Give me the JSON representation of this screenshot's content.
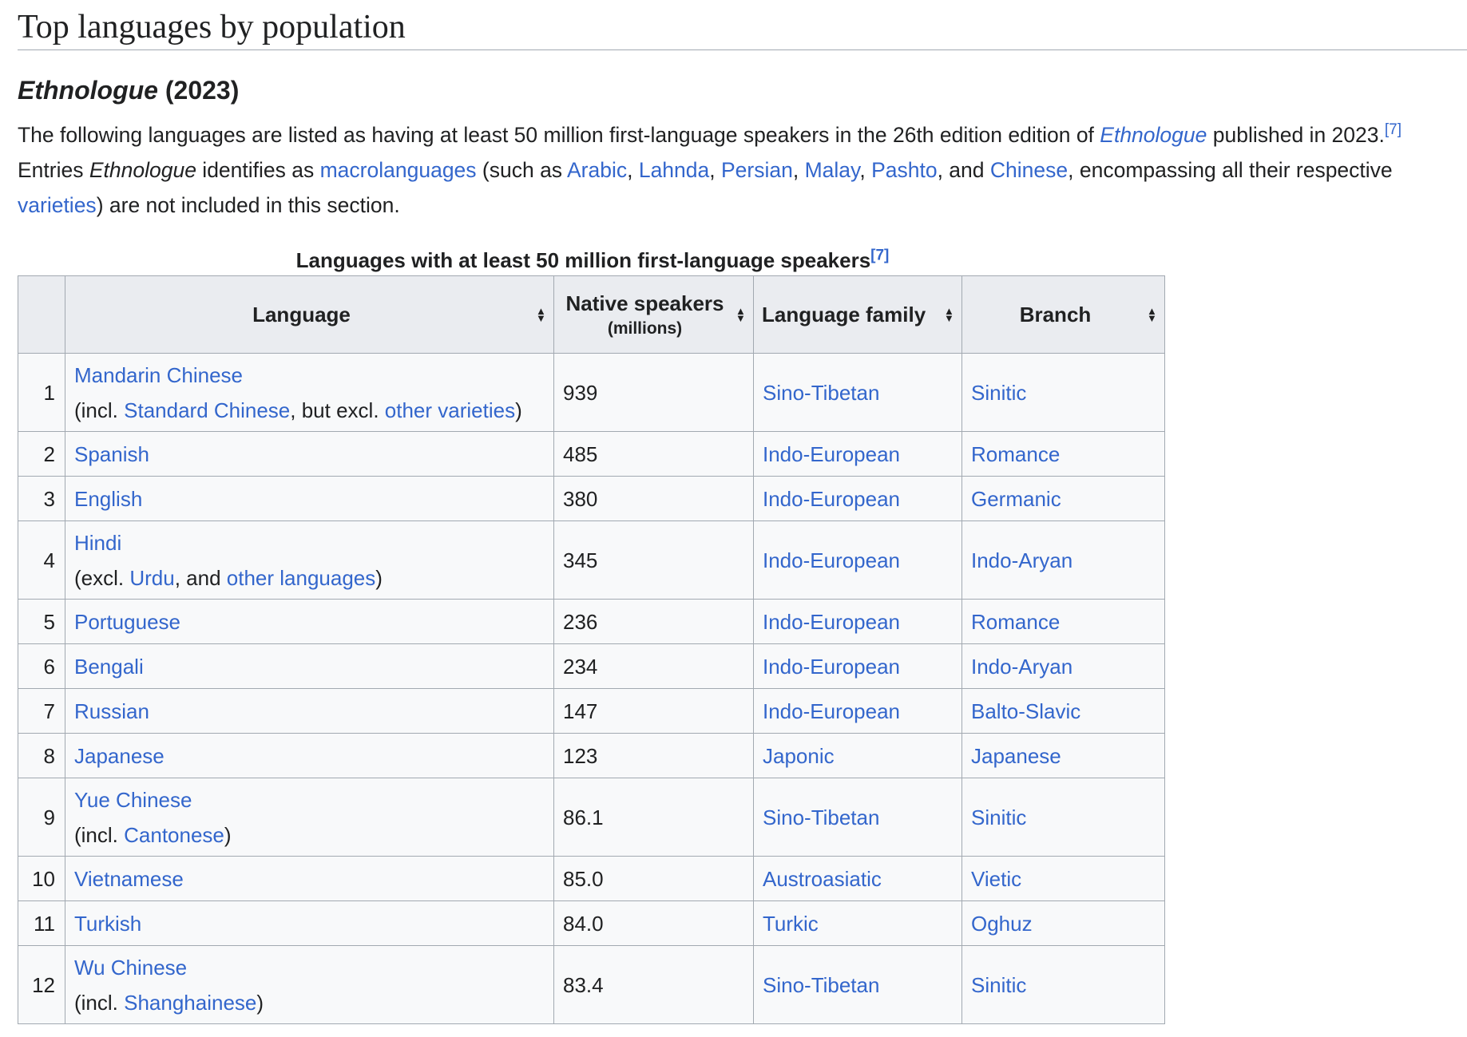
{
  "section_title": "Top languages by population",
  "subsection": {
    "title_italic": "Ethnologue",
    "title_rest": " (2023)"
  },
  "intro": {
    "t1": "The following languages are listed as having at least 50 million first-language speakers in the 26th edition edition of ",
    "l1": "Ethnologue",
    "t2": " published in 2023.",
    "ref": "[7]",
    "t3": "Entries ",
    "i1": "Ethnologue",
    "t4": " identifies as ",
    "l2": "macrolanguages",
    "t5": " (such as ",
    "l3": "Arabic",
    "c1": ", ",
    "l4": "Lahnda",
    "c2": ", ",
    "l5": "Persian",
    "c3": ", ",
    "l6": "Malay",
    "c4": ", ",
    "l7": "Pashto",
    "t6": ", and ",
    "l8": "Chinese",
    "t7": ", encompassing all their respective ",
    "l9": "varieties",
    "t8": ") are not included in this section."
  },
  "table": {
    "caption": "Languages with at least 50 million first-language speakers",
    "caption_ref": "[7]",
    "headers": {
      "rank": "",
      "language": "Language",
      "speakers": "Native speakers",
      "speakers_sub": "(millions)",
      "family": "Language family",
      "branch": "Branch"
    },
    "rows": [
      {
        "rank": "1",
        "language": "Mandarin Chinese",
        "note": {
          "pre": "(incl. ",
          "link1": "Standard Chinese",
          "mid": ", but excl. ",
          "link2": "other varieties",
          "post": ")"
        },
        "speakers": "939",
        "family": "Sino-Tibetan",
        "branch": "Sinitic"
      },
      {
        "rank": "2",
        "language": "Spanish",
        "speakers": "485",
        "family": "Indo-European",
        "branch": "Romance"
      },
      {
        "rank": "3",
        "language": "English",
        "speakers": "380",
        "family": "Indo-European",
        "branch": "Germanic"
      },
      {
        "rank": "4",
        "language": "Hindi",
        "note": {
          "pre": "(excl. ",
          "link1": "Urdu",
          "mid": ", and ",
          "link2": "other languages",
          "post": ")"
        },
        "speakers": "345",
        "family": "Indo-European",
        "branch": "Indo-Aryan"
      },
      {
        "rank": "5",
        "language": "Portuguese",
        "speakers": "236",
        "family": "Indo-European",
        "branch": "Romance"
      },
      {
        "rank": "6",
        "language": "Bengali",
        "speakers": "234",
        "family": "Indo-European",
        "branch": "Indo-Aryan"
      },
      {
        "rank": "7",
        "language": "Russian",
        "speakers": "147",
        "family": "Indo-European",
        "branch": "Balto-Slavic"
      },
      {
        "rank": "8",
        "language": "Japanese",
        "speakers": "123",
        "family": "Japonic",
        "branch": "Japanese"
      },
      {
        "rank": "9",
        "language": "Yue Chinese",
        "note": {
          "pre": "(incl. ",
          "link1": "Cantonese",
          "post": ")"
        },
        "speakers": "86.1",
        "family": "Sino-Tibetan",
        "branch": "Sinitic"
      },
      {
        "rank": "10",
        "language": "Vietnamese",
        "speakers": "85.0",
        "family": "Austroasiatic",
        "branch": "Vietic"
      },
      {
        "rank": "11",
        "language": "Turkish",
        "speakers": "84.0",
        "family": "Turkic",
        "branch": "Oghuz"
      },
      {
        "rank": "12",
        "language": "Wu Chinese",
        "note": {
          "pre": "(incl. ",
          "link1": "Shanghainese",
          "post": ")"
        },
        "speakers": "83.4",
        "family": "Sino-Tibetan",
        "branch": "Sinitic"
      }
    ]
  },
  "icons": {
    "sort": "sort-up-down-icon"
  },
  "colors": {
    "link": "#3366cc",
    "text": "#202122",
    "header_bg": "#eaecf0",
    "cell_bg": "#f8f9fa",
    "border": "#a2a9b1"
  }
}
